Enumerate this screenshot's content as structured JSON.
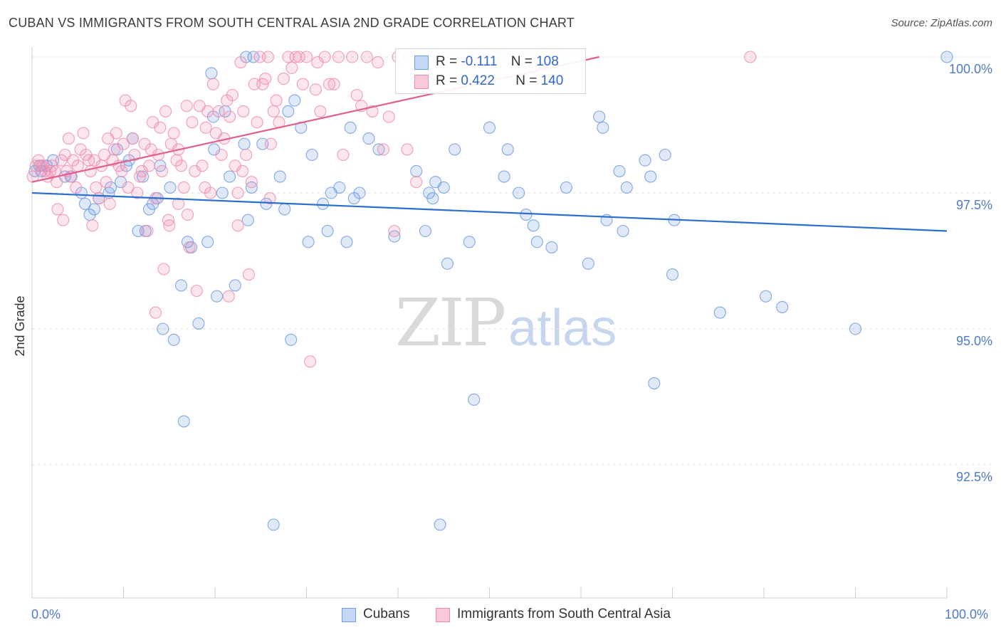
{
  "header": {
    "title": "CUBAN VS IMMIGRANTS FROM SOUTH CENTRAL ASIA 2ND GRADE CORRELATION CHART",
    "source": "Source: ZipAtlas.com"
  },
  "watermark": {
    "zip": "ZIP",
    "atlas": "atlas"
  },
  "legend": {
    "rows": [
      {
        "r_label": "R = ",
        "r_value": "-0.111",
        "n_label": "N = ",
        "n_value": "108",
        "color": "#6f9be0"
      },
      {
        "r_label": "R = ",
        "r_value": "0.422",
        "n_label": "N = ",
        "n_value": "140",
        "color": "#f08cb0"
      }
    ]
  },
  "bottom_legend": [
    {
      "label": "Cubans",
      "color": "#6f9be0"
    },
    {
      "label": "Immigrants from South Central Asia",
      "color": "#f08cb0"
    }
  ],
  "chart_data": {
    "type": "scatter",
    "ylabel": "2nd Grade",
    "x_tick_labels": [
      "0.0%",
      "100.0%"
    ],
    "y_tick_labels": [
      "100.0%",
      "97.5%",
      "95.0%",
      "92.5%"
    ],
    "xlim": [
      0,
      100
    ],
    "ylim": [
      90.5,
      100.15
    ],
    "y_ticks": [
      100.0,
      97.5,
      95.0,
      92.5
    ],
    "grid": true,
    "series": [
      {
        "name": "Cubans",
        "color": "#6f9be0",
        "line_color": "#2a6fd0",
        "trend": {
          "x": [
            0,
            100
          ],
          "y": [
            97.5,
            96.8
          ]
        },
        "points": [
          [
            0.3,
            97.9
          ],
          [
            0.8,
            98.0
          ],
          [
            1.0,
            97.9
          ],
          [
            1.6,
            98.0
          ],
          [
            2.3,
            98.1
          ],
          [
            3.6,
            97.8
          ],
          [
            4.3,
            97.8
          ],
          [
            5.4,
            97.5
          ],
          [
            5.8,
            97.3
          ],
          [
            6.3,
            97.1
          ],
          [
            6.8,
            97.2
          ],
          [
            7.3,
            97.4
          ],
          [
            8.4,
            97.5
          ],
          [
            8.6,
            97.6
          ],
          [
            9.3,
            98.3
          ],
          [
            9.7,
            97.7
          ],
          [
            10.3,
            98.0
          ],
          [
            10.6,
            98.1
          ],
          [
            11.0,
            98.5
          ],
          [
            11.6,
            96.8
          ],
          [
            12.1,
            97.8
          ],
          [
            12.4,
            96.8
          ],
          [
            12.8,
            97.2
          ],
          [
            13.2,
            97.3
          ],
          [
            13.7,
            97.4
          ],
          [
            14.0,
            98.0
          ],
          [
            14.3,
            95.0
          ],
          [
            15.1,
            97.6
          ],
          [
            15.5,
            94.8
          ],
          [
            16.3,
            95.8
          ],
          [
            16.6,
            93.3
          ],
          [
            17.0,
            96.6
          ],
          [
            17.4,
            96.5
          ],
          [
            18.2,
            95.1
          ],
          [
            19.2,
            96.6
          ],
          [
            19.6,
            99.7
          ],
          [
            19.8,
            98.9
          ],
          [
            19.9,
            98.3
          ],
          [
            20.2,
            95.6
          ],
          [
            20.8,
            97.5
          ],
          [
            21.1,
            99.0
          ],
          [
            21.6,
            97.8
          ],
          [
            22.2,
            95.8
          ],
          [
            23.2,
            98.4
          ],
          [
            23.4,
            100.0
          ],
          [
            23.6,
            97.0
          ],
          [
            24.0,
            97.6
          ],
          [
            24.2,
            100.0
          ],
          [
            25.2,
            98.4
          ],
          [
            25.6,
            97.3
          ],
          [
            26.4,
            91.4
          ],
          [
            27.1,
            97.8
          ],
          [
            27.6,
            97.2
          ],
          [
            28.0,
            99.0
          ],
          [
            28.3,
            94.8
          ],
          [
            28.7,
            99.2
          ],
          [
            29.4,
            98.7
          ],
          [
            30.2,
            96.6
          ],
          [
            30.6,
            98.2
          ],
          [
            31.8,
            97.3
          ],
          [
            32.3,
            96.8
          ],
          [
            32.7,
            97.5
          ],
          [
            33.6,
            97.6
          ],
          [
            34.4,
            96.6
          ],
          [
            34.8,
            98.7
          ],
          [
            35.2,
            97.4
          ],
          [
            35.8,
            97.5
          ],
          [
            36.8,
            98.5
          ],
          [
            37.9,
            98.3
          ],
          [
            39.6,
            96.7
          ],
          [
            42.0,
            97.9
          ],
          [
            43.0,
            96.8
          ],
          [
            43.4,
            97.5
          ],
          [
            43.8,
            97.4
          ],
          [
            44.1,
            97.7
          ],
          [
            44.6,
            91.4
          ],
          [
            45.0,
            97.6
          ],
          [
            45.4,
            96.2
          ],
          [
            46.2,
            98.3
          ],
          [
            47.8,
            96.6
          ],
          [
            48.3,
            93.7
          ],
          [
            50.0,
            98.7
          ],
          [
            51.6,
            97.8
          ],
          [
            52.0,
            98.3
          ],
          [
            53.2,
            97.5
          ],
          [
            54.0,
            97.1
          ],
          [
            54.8,
            96.9
          ],
          [
            55.2,
            96.6
          ],
          [
            56.8,
            96.5
          ],
          [
            58.4,
            97.6
          ],
          [
            60.8,
            96.2
          ],
          [
            62.0,
            98.9
          ],
          [
            62.4,
            98.7
          ],
          [
            62.8,
            97.0
          ],
          [
            64.2,
            97.9
          ],
          [
            64.6,
            96.8
          ],
          [
            65.0,
            97.6
          ],
          [
            67.0,
            98.1
          ],
          [
            67.6,
            97.8
          ],
          [
            68.0,
            94.0
          ],
          [
            69.2,
            98.2
          ],
          [
            70.0,
            96.0
          ],
          [
            70.2,
            97.0
          ],
          [
            75.2,
            95.3
          ],
          [
            80.2,
            95.6
          ],
          [
            82.0,
            95.4
          ],
          [
            90.0,
            95.0
          ],
          [
            100.0,
            100.0
          ]
        ]
      },
      {
        "name": "Immigrants from South Central Asia",
        "color": "#f08cb0",
        "line_color": "#e06090",
        "trend": {
          "x": [
            0,
            62
          ],
          "y": [
            97.7,
            100.0
          ]
        },
        "points": [
          [
            0.1,
            97.8
          ],
          [
            0.4,
            98.0
          ],
          [
            0.7,
            98.1
          ],
          [
            1.0,
            98.0
          ],
          [
            1.2,
            98.0
          ],
          [
            1.4,
            97.9
          ],
          [
            1.7,
            97.8
          ],
          [
            2.0,
            97.9
          ],
          [
            2.2,
            98.0
          ],
          [
            2.5,
            97.9
          ],
          [
            2.7,
            97.7
          ],
          [
            2.8,
            97.2
          ],
          [
            3.2,
            98.1
          ],
          [
            3.4,
            97.0
          ],
          [
            3.6,
            98.2
          ],
          [
            3.8,
            97.9
          ],
          [
            4.0,
            98.5
          ],
          [
            4.2,
            97.8
          ],
          [
            4.5,
            98.1
          ],
          [
            4.8,
            97.6
          ],
          [
            5.0,
            98.0
          ],
          [
            5.3,
            98.3
          ],
          [
            5.6,
            98.6
          ],
          [
            5.9,
            98.2
          ],
          [
            6.2,
            98.1
          ],
          [
            6.4,
            97.9
          ],
          [
            6.6,
            96.9
          ],
          [
            6.8,
            98.1
          ],
          [
            7.0,
            97.6
          ],
          [
            7.3,
            97.4
          ],
          [
            7.6,
            98.0
          ],
          [
            7.9,
            98.2
          ],
          [
            8.1,
            97.7
          ],
          [
            8.3,
            98.5
          ],
          [
            8.5,
            97.3
          ],
          [
            8.8,
            98.1
          ],
          [
            9.0,
            98.3
          ],
          [
            9.2,
            98.6
          ],
          [
            9.5,
            98.0
          ],
          [
            9.8,
            97.9
          ],
          [
            10.0,
            98.4
          ],
          [
            10.2,
            99.2
          ],
          [
            10.5,
            97.6
          ],
          [
            10.8,
            99.1
          ],
          [
            11.0,
            98.5
          ],
          [
            11.2,
            98.2
          ],
          [
            11.5,
            97.5
          ],
          [
            11.8,
            97.8
          ],
          [
            12.0,
            97.9
          ],
          [
            12.3,
            98.4
          ],
          [
            12.6,
            96.8
          ],
          [
            12.8,
            98.0
          ],
          [
            13.0,
            98.3
          ],
          [
            13.2,
            98.8
          ],
          [
            13.5,
            97.4
          ],
          [
            13.8,
            98.2
          ],
          [
            14.0,
            98.7
          ],
          [
            14.2,
            97.9
          ],
          [
            14.4,
            96.1
          ],
          [
            14.6,
            99.0
          ],
          [
            14.9,
            97.0
          ],
          [
            15.2,
            98.4
          ],
          [
            15.5,
            98.6
          ],
          [
            15.8,
            98.1
          ],
          [
            16.0,
            98.3
          ],
          [
            16.3,
            98.0
          ],
          [
            16.6,
            97.6
          ],
          [
            16.9,
            99.1
          ],
          [
            17.2,
            96.5
          ],
          [
            17.5,
            98.8
          ],
          [
            17.8,
            97.9
          ],
          [
            18.0,
            95.7
          ],
          [
            18.3,
            99.1
          ],
          [
            18.6,
            98.0
          ],
          [
            18.9,
            97.6
          ],
          [
            19.2,
            99.0
          ],
          [
            19.5,
            97.5
          ],
          [
            19.8,
            99.5
          ],
          [
            20.1,
            98.6
          ],
          [
            20.4,
            99.0
          ],
          [
            20.7,
            98.2
          ],
          [
            21.0,
            98.5
          ],
          [
            21.3,
            99.2
          ],
          [
            21.6,
            98.9
          ],
          [
            21.9,
            99.3
          ],
          [
            22.2,
            98.0
          ],
          [
            22.5,
            97.5
          ],
          [
            22.8,
            99.9
          ],
          [
            23.1,
            99.0
          ],
          [
            23.4,
            98.2
          ],
          [
            23.7,
            96.0
          ],
          [
            24.0,
            97.7
          ],
          [
            24.3,
            99.5
          ],
          [
            24.6,
            98.8
          ],
          [
            24.9,
            100.0
          ],
          [
            25.2,
            99.5
          ],
          [
            25.5,
            99.6
          ],
          [
            25.8,
            100.0
          ],
          [
            26.1,
            98.4
          ],
          [
            26.4,
            99.0
          ],
          [
            26.7,
            99.2
          ],
          [
            27.0,
            98.8
          ],
          [
            27.5,
            99.6
          ],
          [
            28.0,
            100.0
          ],
          [
            28.4,
            99.8
          ],
          [
            28.8,
            100.0
          ],
          [
            29.2,
            100.0
          ],
          [
            29.6,
            99.5
          ],
          [
            30.0,
            100.0
          ],
          [
            30.4,
            94.4
          ],
          [
            31.0,
            99.4
          ],
          [
            31.5,
            99.0
          ],
          [
            32.0,
            100.0
          ],
          [
            32.5,
            99.5
          ],
          [
            33.0,
            99.5
          ],
          [
            33.5,
            100.0
          ],
          [
            34.0,
            98.2
          ],
          [
            35.0,
            100.0
          ],
          [
            35.5,
            99.3
          ],
          [
            36.0,
            99.1
          ],
          [
            36.6,
            100.0
          ],
          [
            37.2,
            99.0
          ],
          [
            37.8,
            99.9
          ],
          [
            38.4,
            98.3
          ],
          [
            39.0,
            98.9
          ],
          [
            39.6,
            96.8
          ],
          [
            40.0,
            100.0
          ],
          [
            41.0,
            98.3
          ],
          [
            42.0,
            97.7
          ],
          [
            13.5,
            95.3
          ],
          [
            15.0,
            96.9
          ],
          [
            16.0,
            97.3
          ],
          [
            17.0,
            97.1
          ],
          [
            19.0,
            98.7
          ],
          [
            21.5,
            95.6
          ],
          [
            22.5,
            96.9
          ],
          [
            23.0,
            97.9
          ],
          [
            26.0,
            97.4
          ],
          [
            31.2,
            99.9
          ],
          [
            78.5,
            100.0
          ]
        ]
      }
    ]
  }
}
